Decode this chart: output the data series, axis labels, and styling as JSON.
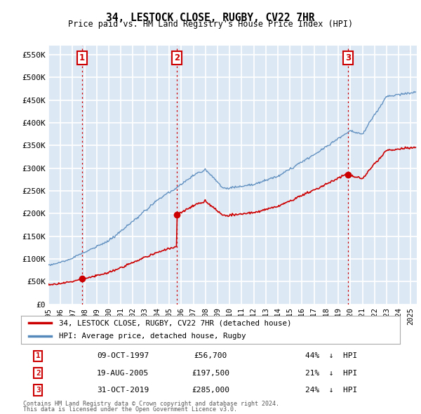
{
  "title": "34, LESTOCK CLOSE, RUGBY, CV22 7HR",
  "subtitle": "Price paid vs. HM Land Registry's House Price Index (HPI)",
  "ylim": [
    0,
    570000
  ],
  "yticks": [
    0,
    50000,
    100000,
    150000,
    200000,
    250000,
    300000,
    350000,
    400000,
    450000,
    500000,
    550000
  ],
  "ytick_labels": [
    "£0",
    "£50K",
    "£100K",
    "£150K",
    "£200K",
    "£250K",
    "£300K",
    "£350K",
    "£400K",
    "£450K",
    "£500K",
    "£550K"
  ],
  "red_color": "#cc0000",
  "blue_color": "#5588bb",
  "dashed_color": "#cc0000",
  "bg_color": "#dde8f5",
  "grid_color": "#ffffff",
  "legend_label_red": "34, LESTOCK CLOSE, RUGBY, CV22 7HR (detached house)",
  "legend_label_blue": "HPI: Average price, detached house, Rugby",
  "transactions": [
    {
      "num": 1,
      "date": "09-OCT-1997",
      "price": 56700,
      "pct": "44%",
      "year": 1997.78
    },
    {
      "num": 2,
      "date": "19-AUG-2005",
      "price": 197500,
      "pct": "21%",
      "year": 2005.63
    },
    {
      "num": 3,
      "date": "31-OCT-2019",
      "price": 285000,
      "pct": "24%",
      "year": 2019.83
    }
  ],
  "footnote1": "Contains HM Land Registry data © Crown copyright and database right 2024.",
  "footnote2": "This data is licensed under the Open Government Licence v3.0.",
  "xmin_year": 1995.0,
  "xmax_year": 2025.5,
  "xtick_years": [
    1995,
    1996,
    1997,
    1998,
    1999,
    2000,
    2001,
    2002,
    2003,
    2004,
    2005,
    2006,
    2007,
    2008,
    2009,
    2010,
    2011,
    2012,
    2013,
    2014,
    2015,
    2016,
    2017,
    2018,
    2019,
    2020,
    2021,
    2022,
    2023,
    2024,
    2025
  ]
}
